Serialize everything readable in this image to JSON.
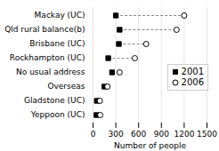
{
  "chart_data": {
    "type": "dumbbell",
    "orientation": "horizontal",
    "categories": [
      "Mackay (UC)",
      "Qld rural balance(b)",
      "Brisbane (UC)",
      "Rockhampton (UC)",
      "No usual address",
      "Overseas",
      "Gladstone (UC)",
      "Yeppoon (UC)"
    ],
    "series": [
      {
        "name": "2001",
        "color": "#000000",
        "marker": "square",
        "values": [
          300,
          350,
          340,
          200,
          250,
          150,
          50,
          45
        ]
      },
      {
        "name": "2006",
        "color": "#000000",
        "marker": "circle",
        "values": [
          1200,
          1100,
          700,
          550,
          350,
          190,
          90,
          95
        ]
      }
    ],
    "xlabel": "Number of people",
    "xlim": [
      0,
      1500
    ],
    "xticks": [
      0,
      300,
      600,
      900,
      1200,
      1500
    ],
    "grid": true,
    "legend": "right"
  }
}
